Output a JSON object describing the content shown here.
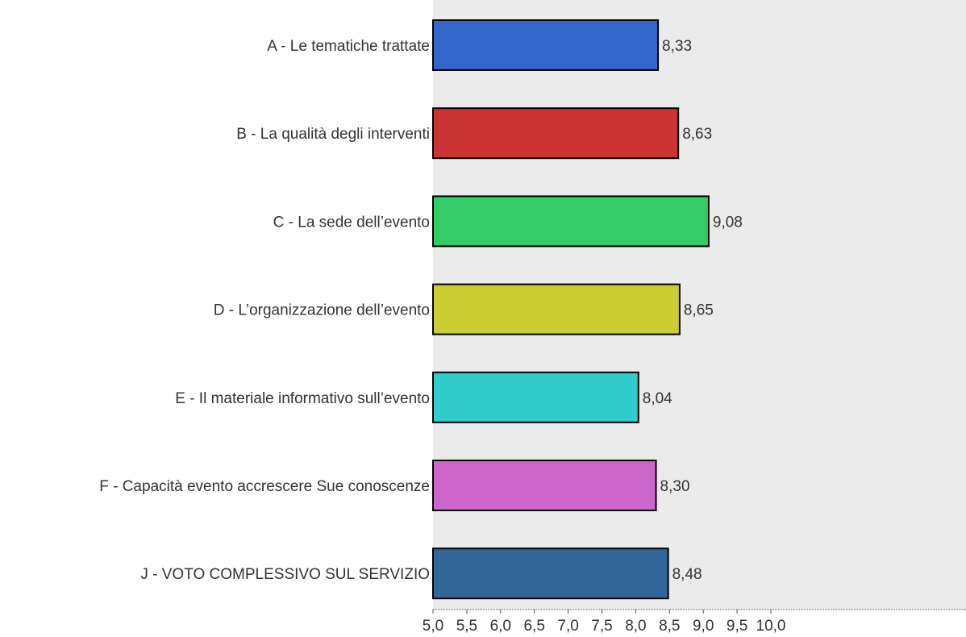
{
  "chart_data": {
    "type": "bar",
    "orientation": "horizontal",
    "categories": [
      "A - Le tematiche trattate",
      "B - La qualità degli interventi",
      "C - La sede dell’evento",
      "D - L’organizzazione dell’evento",
      "E - Il materiale informativo sull’evento",
      "F - Capacità evento accrescere Sue conoscenze",
      "J - VOTO COMPLESSIVO SUL SERVIZIO"
    ],
    "values": [
      8.33,
      8.63,
      9.08,
      8.65,
      8.04,
      8.3,
      8.48
    ],
    "value_labels": [
      "8,33",
      "8,63",
      "9,08",
      "8,65",
      "8,04",
      "8,30",
      "8,48"
    ],
    "colors": [
      "#3366cc",
      "#cc3333",
      "#33cc66",
      "#cccc33",
      "#33cccc",
      "#cc66cc",
      "#336699"
    ],
    "xlim": [
      5.0,
      10.0
    ],
    "x_ticks": [
      5.0,
      5.5,
      6.0,
      6.5,
      7.0,
      7.5,
      8.0,
      8.5,
      9.0,
      9.5,
      10.0
    ],
    "x_tick_labels": [
      "5,0",
      "5,5",
      "6,0",
      "6,5",
      "7,0",
      "7,5",
      "8,0",
      "8,5",
      "9,0",
      "9,5",
      "10,0"
    ],
    "title": "",
    "xlabel": "",
    "ylabel": "",
    "grid": false,
    "plot_background": "#ebebeb",
    "bar_border": "#000000"
  }
}
